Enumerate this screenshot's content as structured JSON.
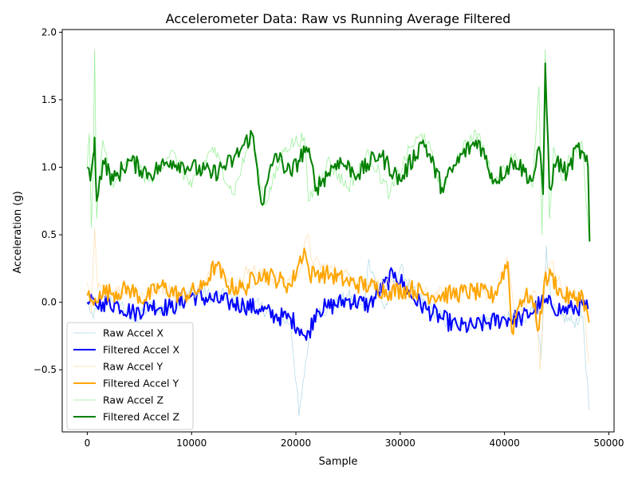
{
  "chart_data": {
    "type": "line",
    "title": "Accelerometer Data: Raw vs Running Average Filtered",
    "xlabel": "Sample",
    "ylabel": "Acceleration (g)",
    "xlim": [
      -2400,
      50500
    ],
    "ylim": [
      -0.96,
      2.02
    ],
    "xticks": [
      0,
      10000,
      20000,
      30000,
      40000,
      50000
    ],
    "xtick_labels": [
      "0",
      "10000",
      "20000",
      "30000",
      "40000",
      "50000"
    ],
    "yticks": [
      -0.5,
      0.0,
      0.5,
      1.0,
      1.5,
      2.0
    ],
    "ytick_labels": [
      "−0.5",
      "0.0",
      "0.5",
      "1.0",
      "1.5",
      "2.0"
    ],
    "grid": false,
    "legend_position": "lower-left",
    "series": [
      {
        "name": "Raw Accel X",
        "color": "#add8e6",
        "line_width": 0.8,
        "opacity": 0.9,
        "x": [
          0,
          600,
          1500,
          3000,
          4500,
          6000,
          8000,
          10000,
          12000,
          13500,
          15000,
          16500,
          18000,
          19500,
          20300,
          20800,
          21200,
          22000,
          23000,
          25000,
          26500,
          27000,
          28500,
          30000,
          31500,
          33000,
          34500,
          36000,
          37500,
          39000,
          40500,
          42000,
          43000,
          43500,
          44000,
          44500,
          45500,
          46500,
          47500,
          48100
        ],
        "y": [
          0.0,
          -0.12,
          0.05,
          0.02,
          -0.15,
          -0.03,
          -0.05,
          0.08,
          0.05,
          0.05,
          -0.05,
          -0.02,
          -0.12,
          -0.15,
          -0.84,
          -0.55,
          -0.3,
          -0.05,
          -0.06,
          0.05,
          -0.05,
          0.32,
          -0.05,
          0.25,
          0.05,
          -0.05,
          -0.15,
          -0.18,
          -0.15,
          -0.12,
          -0.12,
          -0.15,
          0.0,
          -0.42,
          0.42,
          -0.05,
          -0.1,
          -0.15,
          -0.1,
          -0.8
        ]
      },
      {
        "name": "Filtered Accel X",
        "color": "#0000ff",
        "line_width": 2,
        "opacity": 1,
        "x": [
          0,
          800,
          1500,
          3000,
          4500,
          6000,
          8000,
          10000,
          12000,
          13500,
          15000,
          16500,
          18000,
          19500,
          20500,
          21000,
          22000,
          23000,
          25000,
          27000,
          29500,
          31000,
          32500,
          34000,
          35500,
          37000,
          38500,
          40000,
          41500,
          42500,
          43500,
          44500,
          45500,
          46500,
          47500,
          48000
        ],
        "y": [
          0.0,
          -0.02,
          0.0,
          -0.02,
          -0.08,
          -0.02,
          -0.04,
          0.05,
          0.02,
          0.0,
          -0.02,
          -0.05,
          -0.1,
          -0.12,
          -0.2,
          -0.28,
          -0.05,
          -0.04,
          0.02,
          -0.02,
          0.22,
          0.05,
          -0.05,
          -0.12,
          -0.18,
          -0.18,
          -0.15,
          -0.12,
          -0.12,
          -0.08,
          0.0,
          -0.02,
          -0.06,
          -0.05,
          -0.02,
          -0.05
        ]
      },
      {
        "name": "Raw Accel Y",
        "color": "#ffdead",
        "line_width": 0.8,
        "opacity": 0.9,
        "x": [
          0,
          400,
          700,
          1000,
          2500,
          4000,
          5500,
          7000,
          9000,
          11000,
          12500,
          14000,
          15500,
          17000,
          19000,
          20500,
          21100,
          21600,
          23000,
          25000,
          27000,
          29000,
          31000,
          33000,
          35000,
          37000,
          39000,
          40300,
          41000,
          43000,
          43400,
          43900,
          44500,
          45500,
          46500,
          47500,
          48100
        ],
        "y": [
          0.14,
          -0.08,
          0.55,
          0.1,
          0.08,
          0.1,
          0.05,
          0.12,
          0.05,
          0.1,
          0.3,
          0.1,
          0.25,
          0.2,
          0.15,
          0.25,
          0.5,
          0.3,
          0.25,
          0.2,
          0.15,
          0.12,
          0.1,
          0.05,
          0.08,
          0.1,
          0.05,
          0.32,
          -0.1,
          0.08,
          -0.5,
          0.2,
          0.3,
          0.1,
          0.05,
          0.05,
          -0.45
        ]
      },
      {
        "name": "Filtered Accel Y",
        "color": "#ffa500",
        "line_width": 2,
        "opacity": 1,
        "x": [
          0,
          600,
          1200,
          2500,
          4000,
          5500,
          7000,
          9000,
          11000,
          12300,
          13500,
          15000,
          16500,
          18000,
          19500,
          20800,
          21300,
          22000,
          23500,
          25000,
          27000,
          29000,
          31000,
          33000,
          35000,
          37000,
          39000,
          40300,
          40700,
          41500,
          42500,
          43300,
          43800,
          44500,
          45500,
          46500,
          47500,
          48100
        ],
        "y": [
          0.05,
          -0.02,
          0.08,
          0.07,
          0.1,
          0.02,
          0.12,
          0.05,
          0.1,
          0.28,
          0.12,
          0.1,
          0.22,
          0.18,
          0.12,
          0.4,
          0.2,
          0.22,
          0.2,
          0.15,
          0.12,
          0.08,
          0.1,
          0.05,
          0.06,
          0.08,
          0.05,
          0.3,
          -0.22,
          0.02,
          0.05,
          -0.2,
          0.15,
          0.2,
          0.05,
          0.03,
          0.05,
          -0.15
        ]
      },
      {
        "name": "Raw Accel Z",
        "color": "#90ee90",
        "line_width": 0.8,
        "opacity": 0.9,
        "x": [
          0,
          200,
          400,
          600,
          700,
          900,
          1500,
          2500,
          4000,
          6000,
          8000,
          10000,
          12000,
          14000,
          15800,
          17000,
          19000,
          20800,
          21200,
          23000,
          25000,
          27000,
          29000,
          31000,
          32300,
          34000,
          36000,
          37500,
          39000,
          41000,
          42700,
          43300,
          43600,
          43900,
          44300,
          44700,
          45500,
          46500,
          47500,
          48100
        ],
        "y": [
          1.0,
          1.25,
          0.55,
          1.1,
          1.87,
          0.62,
          1.2,
          0.85,
          1.05,
          0.9,
          1.12,
          0.85,
          1.15,
          0.8,
          1.25,
          0.72,
          1.15,
          1.22,
          0.75,
          1.05,
          0.85,
          1.1,
          0.8,
          1.15,
          1.25,
          0.85,
          1.15,
          1.25,
          0.88,
          1.1,
          0.85,
          1.6,
          0.5,
          1.87,
          0.62,
          1.15,
          0.9,
          1.12,
          1.15,
          0.45
        ]
      },
      {
        "name": "Filtered Accel Z",
        "color": "#008000",
        "line_width": 2,
        "opacity": 1,
        "x": [
          0,
          300,
          600,
          700,
          900,
          1500,
          2500,
          4000,
          6000,
          8000,
          10000,
          12000,
          14000,
          15800,
          16800,
          18000,
          19500,
          21000,
          22000,
          24000,
          26000,
          28000,
          30000,
          32200,
          34000,
          36000,
          37500,
          39000,
          41000,
          42700,
          43300,
          43700,
          43900,
          44300,
          45000,
          46000,
          47000,
          48000,
          48150
        ],
        "y": [
          1.0,
          0.9,
          1.1,
          1.22,
          0.75,
          1.05,
          0.9,
          1.05,
          0.95,
          1.05,
          1.0,
          0.95,
          1.05,
          1.25,
          0.72,
          1.1,
          0.95,
          1.15,
          0.85,
          1.05,
          0.95,
          1.1,
          0.9,
          1.2,
          0.85,
          1.1,
          1.2,
          0.9,
          1.05,
          0.9,
          1.15,
          0.8,
          1.77,
          0.85,
          1.05,
          0.95,
          1.15,
          1.0,
          0.45
        ]
      }
    ]
  }
}
